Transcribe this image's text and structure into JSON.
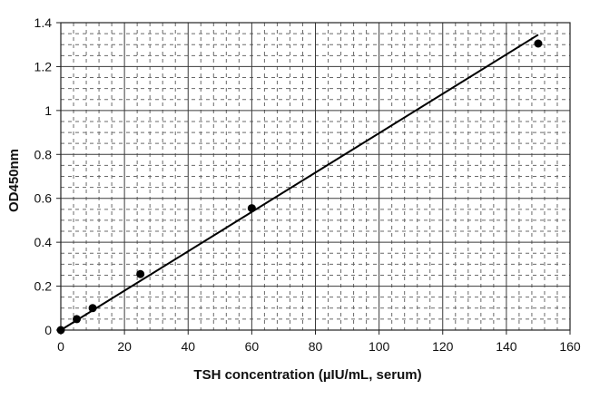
{
  "chart_data": {
    "type": "scatter",
    "xlabel": "TSH concentration (µIU/mL, serum)",
    "ylabel": "OD450nm",
    "xlim": [
      0,
      160
    ],
    "ylim": [
      0,
      1.4
    ],
    "x_ticks": [
      "0",
      "20",
      "40",
      "60",
      "80",
      "100",
      "120",
      "140",
      "160"
    ],
    "y_ticks": [
      "0",
      "0.2",
      "0.4",
      "0.6",
      "0.8",
      "1",
      "1.2",
      "1.4"
    ],
    "grid": "major solid, minor dashed",
    "series": [
      {
        "points": [
          {
            "x": 0,
            "y": 0.0
          },
          {
            "x": 5,
            "y": 0.05
          },
          {
            "x": 10,
            "y": 0.1
          },
          {
            "x": 25,
            "y": 0.255
          },
          {
            "x": 60,
            "y": 0.555
          },
          {
            "x": 150,
            "y": 1.305
          }
        ]
      }
    ],
    "trendline": {
      "type": "linear",
      "x_range": [
        0,
        150
      ],
      "y_at_start": -0.015,
      "y_at_end": 1.345
    },
    "colors": {
      "points": "#000000",
      "line": "#000000",
      "grid": "#555555"
    }
  }
}
